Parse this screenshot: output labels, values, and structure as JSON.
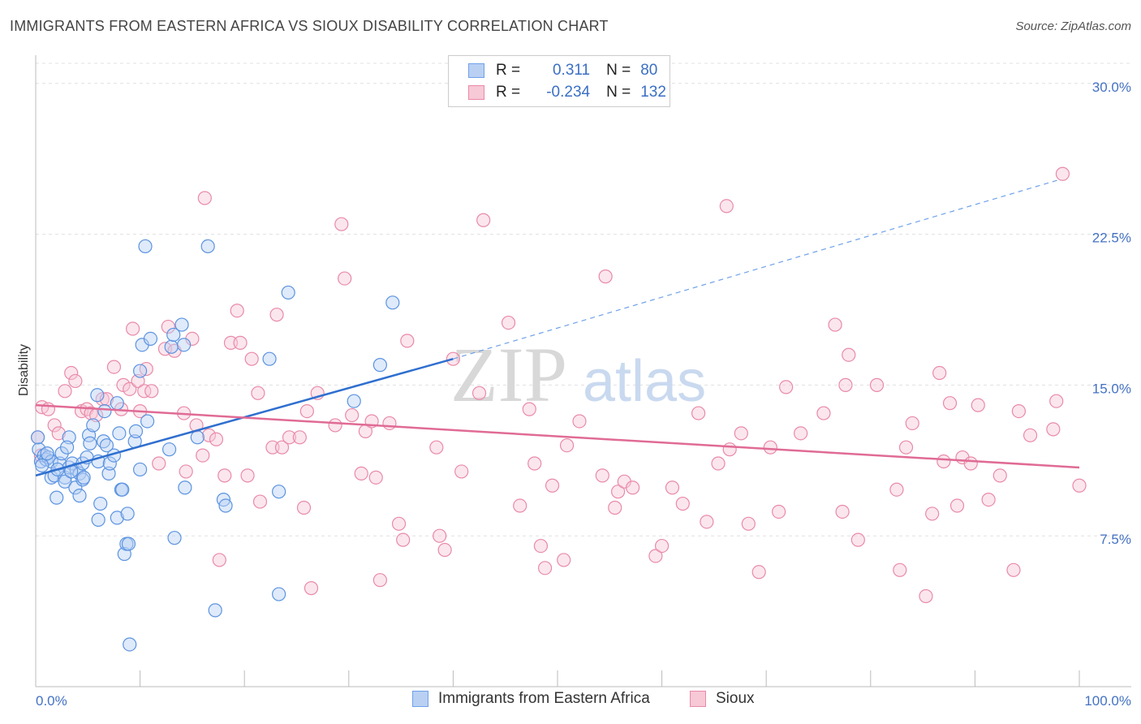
{
  "title": "IMMIGRANTS FROM EASTERN AFRICA VS SIOUX DISABILITY CORRELATION CHART",
  "source": "Source: ZipAtlas.com",
  "watermark": {
    "zip": "ZIP",
    "atlas": "atlas"
  },
  "legend": {
    "rows": [
      {
        "r_label": "R =",
        "r_value": "0.311",
        "n_label": "N =",
        "n_value": "80",
        "color": "#6fa1e8",
        "fill": "#b9d0f3"
      },
      {
        "r_label": "R =",
        "r_value": "-0.234",
        "n_label": "N =",
        "n_value": "132",
        "color": "#e98aa8",
        "fill": "#f7c8d6"
      }
    ]
  },
  "bottom_legend": {
    "series1": "Immigrants from Eastern Africa",
    "series2": "Sioux"
  },
  "chart_data": {
    "type": "scatter",
    "title": "IMMIGRANTS FROM EASTERN AFRICA VS SIOUX DISABILITY CORRELATION CHART",
    "xlabel": "",
    "ylabel": "Disability",
    "xlim": [
      0,
      100
    ],
    "ylim": [
      0,
      31
    ],
    "x_tick_labels": [
      "0.0%",
      "100.0%"
    ],
    "y_ticks": [
      7.5,
      15.0,
      22.5,
      30.0
    ],
    "y_tick_labels": [
      "7.5%",
      "15.0%",
      "22.5%",
      "30.0%"
    ],
    "grid": true,
    "legend_position": "top-center",
    "series": [
      {
        "name": "Immigrants from Eastern Africa",
        "color": "#5b93e0",
        "fill": "#b9d0f3",
        "trend": {
          "x0": 0,
          "y0": 10.5,
          "x1": 40,
          "y1": 16.3,
          "dash_to_x": 98,
          "dash_to_y": 25.2
        },
        "points": [
          [
            0.3,
            11.8
          ],
          [
            0.5,
            11.2
          ],
          [
            0.8,
            11.5
          ],
          [
            1.0,
            11.3
          ],
          [
            1.2,
            11.4
          ],
          [
            1.5,
            11.2
          ],
          [
            1.5,
            10.4
          ],
          [
            1.8,
            10.5
          ],
          [
            2.0,
            9.4
          ],
          [
            2.3,
            11.1
          ],
          [
            2.5,
            11.6
          ],
          [
            2.8,
            10.4
          ],
          [
            2.8,
            10.2
          ],
          [
            3.2,
            10.9
          ],
          [
            3.5,
            11.1
          ],
          [
            3.2,
            12.4
          ],
          [
            3.8,
            9.9
          ],
          [
            3.9,
            10.8
          ],
          [
            4.2,
            10.6
          ],
          [
            4.5,
            10.3
          ],
          [
            4.2,
            9.5
          ],
          [
            4.6,
            10.4
          ],
          [
            4.5,
            11.1
          ],
          [
            4.9,
            11.4
          ],
          [
            5.1,
            12.5
          ],
          [
            5.2,
            12.1
          ],
          [
            5.5,
            13.0
          ],
          [
            5.9,
            14.5
          ],
          [
            6.0,
            11.2
          ],
          [
            6.0,
            8.3
          ],
          [
            6.2,
            9.1
          ],
          [
            6.5,
            12.2
          ],
          [
            6.6,
            13.7
          ],
          [
            7.0,
            10.6
          ],
          [
            7.1,
            11.1
          ],
          [
            7.5,
            11.5
          ],
          [
            7.8,
            14.1
          ],
          [
            7.8,
            8.4
          ],
          [
            8.0,
            12.6
          ],
          [
            8.2,
            9.8
          ],
          [
            8.3,
            9.8
          ],
          [
            8.5,
            6.6
          ],
          [
            8.7,
            7.1
          ],
          [
            8.9,
            7.1
          ],
          [
            8.8,
            8.6
          ],
          [
            9.0,
            2.1
          ],
          [
            9.5,
            12.2
          ],
          [
            9.6,
            12.7
          ],
          [
            10.0,
            10.8
          ],
          [
            10.2,
            17.0
          ],
          [
            10.0,
            15.7
          ],
          [
            10.5,
            21.9
          ],
          [
            10.7,
            13.2
          ],
          [
            11.0,
            17.3
          ],
          [
            12.8,
            11.8
          ],
          [
            13.0,
            16.9
          ],
          [
            13.2,
            17.5
          ],
          [
            13.3,
            7.4
          ],
          [
            14.0,
            18.0
          ],
          [
            14.2,
            17.0
          ],
          [
            14.3,
            9.9
          ],
          [
            15.5,
            12.4
          ],
          [
            16.5,
            21.9
          ],
          [
            17.2,
            3.8
          ],
          [
            18.0,
            9.3
          ],
          [
            18.2,
            9.0
          ],
          [
            22.4,
            16.3
          ],
          [
            23.3,
            9.7
          ],
          [
            23.3,
            4.6
          ],
          [
            24.2,
            19.6
          ],
          [
            30.5,
            14.2
          ],
          [
            33.0,
            16.0
          ],
          [
            34.2,
            19.1
          ],
          [
            0.2,
            12.4
          ],
          [
            0.6,
            11.0
          ],
          [
            1.1,
            11.6
          ],
          [
            2.1,
            10.8
          ],
          [
            3.0,
            11.9
          ],
          [
            3.4,
            10.7
          ],
          [
            6.8,
            12.0
          ]
        ]
      },
      {
        "name": "Sioux",
        "color": "#e98aa8",
        "fill": "#f7c8d6",
        "trend": {
          "x0": 0,
          "y0": 14.0,
          "x1": 100,
          "y1": 10.9
        },
        "points": [
          [
            0.2,
            12.4
          ],
          [
            0.5,
            11.5
          ],
          [
            0.6,
            13.9
          ],
          [
            1.2,
            13.8
          ],
          [
            1.8,
            13.0
          ],
          [
            2.2,
            12.6
          ],
          [
            2.8,
            14.7
          ],
          [
            3.4,
            15.6
          ],
          [
            3.8,
            15.2
          ],
          [
            4.4,
            13.7
          ],
          [
            4.9,
            13.8
          ],
          [
            5.3,
            13.6
          ],
          [
            5.8,
            13.5
          ],
          [
            6.4,
            14.3
          ],
          [
            6.8,
            14.3
          ],
          [
            7.5,
            15.9
          ],
          [
            8.2,
            13.8
          ],
          [
            8.4,
            15.0
          ],
          [
            9.0,
            14.8
          ],
          [
            9.3,
            17.8
          ],
          [
            9.8,
            15.2
          ],
          [
            10.0,
            13.7
          ],
          [
            10.4,
            14.7
          ],
          [
            10.6,
            15.8
          ],
          [
            11.1,
            14.7
          ],
          [
            11.8,
            11.1
          ],
          [
            12.4,
            16.8
          ],
          [
            12.7,
            17.9
          ],
          [
            13.3,
            16.7
          ],
          [
            14.2,
            13.6
          ],
          [
            14.4,
            10.7
          ],
          [
            15.0,
            17.3
          ],
          [
            15.4,
            13.0
          ],
          [
            16.0,
            11.5
          ],
          [
            16.2,
            24.3
          ],
          [
            16.6,
            12.5
          ],
          [
            17.3,
            12.3
          ],
          [
            17.6,
            6.3
          ],
          [
            18.1,
            10.5
          ],
          [
            18.7,
            17.1
          ],
          [
            19.3,
            18.7
          ],
          [
            19.6,
            17.1
          ],
          [
            20.3,
            10.5
          ],
          [
            20.7,
            16.3
          ],
          [
            21.3,
            14.6
          ],
          [
            21.5,
            9.2
          ],
          [
            22.7,
            11.9
          ],
          [
            23.1,
            18.5
          ],
          [
            23.6,
            11.9
          ],
          [
            24.3,
            12.4
          ],
          [
            25.3,
            12.4
          ],
          [
            25.7,
            8.9
          ],
          [
            26.0,
            13.7
          ],
          [
            26.4,
            4.9
          ],
          [
            27.0,
            14.6
          ],
          [
            28.7,
            13.0
          ],
          [
            29.3,
            23.0
          ],
          [
            29.6,
            20.3
          ],
          [
            30.3,
            13.5
          ],
          [
            31.2,
            10.6
          ],
          [
            31.6,
            12.7
          ],
          [
            32.2,
            13.2
          ],
          [
            32.6,
            10.4
          ],
          [
            33.0,
            5.3
          ],
          [
            33.9,
            13.1
          ],
          [
            34.8,
            8.1
          ],
          [
            35.2,
            7.3
          ],
          [
            35.6,
            17.2
          ],
          [
            38.4,
            11.9
          ],
          [
            38.7,
            7.5
          ],
          [
            39.2,
            6.8
          ],
          [
            40.0,
            16.3
          ],
          [
            40.8,
            10.7
          ],
          [
            42.5,
            14.6
          ],
          [
            42.9,
            23.2
          ],
          [
            45.3,
            18.1
          ],
          [
            46.4,
            9.0
          ],
          [
            47.3,
            13.8
          ],
          [
            47.8,
            11.1
          ],
          [
            48.4,
            7.0
          ],
          [
            48.8,
            5.9
          ],
          [
            49.5,
            10.0
          ],
          [
            50.6,
            6.3
          ],
          [
            50.9,
            12.0
          ],
          [
            52.1,
            13.2
          ],
          [
            54.3,
            10.5
          ],
          [
            54.6,
            20.4
          ],
          [
            55.5,
            8.9
          ],
          [
            55.8,
            9.7
          ],
          [
            56.4,
            10.2
          ],
          [
            57.2,
            9.9
          ],
          [
            59.4,
            6.5
          ],
          [
            60.0,
            7.0
          ],
          [
            61.0,
            9.9
          ],
          [
            62.0,
            9.1
          ],
          [
            63.5,
            13.6
          ],
          [
            64.3,
            8.2
          ],
          [
            65.4,
            11.1
          ],
          [
            66.2,
            23.9
          ],
          [
            66.5,
            11.8
          ],
          [
            67.6,
            12.6
          ],
          [
            68.3,
            8.1
          ],
          [
            69.3,
            5.7
          ],
          [
            70.4,
            11.9
          ],
          [
            71.2,
            8.7
          ],
          [
            71.9,
            14.9
          ],
          [
            73.3,
            12.6
          ],
          [
            75.5,
            13.6
          ],
          [
            76.6,
            18.0
          ],
          [
            77.3,
            8.7
          ],
          [
            77.6,
            15.0
          ],
          [
            77.9,
            16.5
          ],
          [
            78.8,
            7.3
          ],
          [
            80.6,
            15.0
          ],
          [
            82.5,
            9.8
          ],
          [
            82.8,
            5.8
          ],
          [
            83.4,
            11.9
          ],
          [
            84.0,
            13.1
          ],
          [
            85.3,
            4.5
          ],
          [
            85.9,
            8.6
          ],
          [
            86.6,
            15.6
          ],
          [
            87.0,
            11.2
          ],
          [
            87.6,
            14.1
          ],
          [
            88.3,
            9.0
          ],
          [
            88.8,
            11.4
          ],
          [
            89.6,
            11.1
          ],
          [
            90.3,
            14.0
          ],
          [
            91.3,
            9.3
          ],
          [
            92.4,
            10.5
          ],
          [
            93.7,
            5.8
          ],
          [
            94.2,
            13.7
          ],
          [
            95.3,
            12.5
          ],
          [
            97.5,
            12.8
          ],
          [
            97.8,
            14.2
          ],
          [
            98.4,
            25.5
          ],
          [
            100.0,
            10.0
          ]
        ]
      }
    ]
  }
}
